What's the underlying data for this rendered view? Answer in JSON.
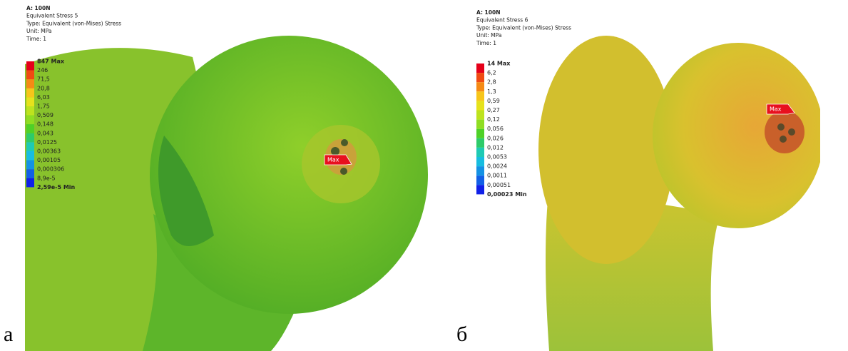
{
  "panels": [
    {
      "letter": "а",
      "header": [
        "A: 100N",
        "Equivalent Stress 5",
        "Type: Equivalent (von-Mises) Stress",
        "Unit: MPa",
        "Time: 1"
      ],
      "legend": [
        "847 Max",
        "246",
        "71,5",
        "20,8",
        "6,03",
        "1,75",
        "0,509",
        "0,148",
        "0,043",
        "0,0125",
        "0,00363",
        "0,00105",
        "0,000306",
        "8,9e-5",
        "2,59e-5 Min"
      ],
      "max_tag": "Max"
    },
    {
      "letter": "б",
      "header": [
        "A: 100N",
        "Equivalent Stress 6",
        "Type: Equivalent (von-Mises) Stress",
        "Unit: MPa",
        "Time: 1"
      ],
      "legend": [
        "14 Max",
        "6,2",
        "2,8",
        "1,3",
        "0,59",
        "0,27",
        "0,12",
        "0,056",
        "0,026",
        "0,012",
        "0,0053",
        "0,0024",
        "0,0011",
        "0,00051",
        "0,00023 Min"
      ],
      "max_tag": "Max"
    }
  ]
}
